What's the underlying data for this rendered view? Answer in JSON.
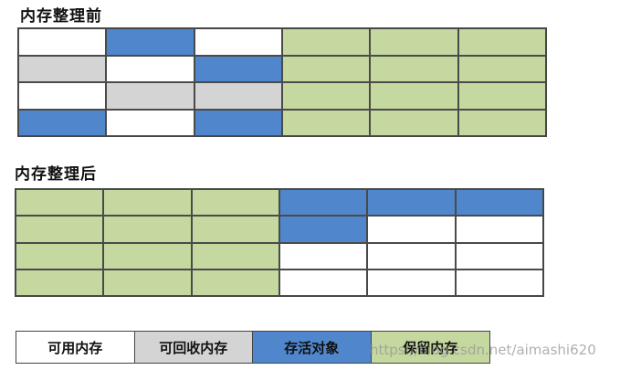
{
  "titles": {
    "before": "内存整理前",
    "after": "内存整理后"
  },
  "before_grid": [
    [
      "free",
      "live",
      "free",
      "reserved",
      "reserved",
      "reserved"
    ],
    [
      "garbage",
      "free",
      "live",
      "reserved",
      "reserved",
      "reserved"
    ],
    [
      "free",
      "garbage",
      "garbage",
      "reserved",
      "reserved",
      "reserved"
    ],
    [
      "live",
      "free",
      "live",
      "reserved",
      "reserved",
      "reserved"
    ]
  ],
  "after_grid": [
    [
      "reserved",
      "reserved",
      "reserved",
      "live",
      "live",
      "live"
    ],
    [
      "reserved",
      "reserved",
      "reserved",
      "live",
      "free",
      "free"
    ],
    [
      "reserved",
      "reserved",
      "reserved",
      "free",
      "free",
      "free"
    ],
    [
      "reserved",
      "reserved",
      "reserved",
      "free",
      "free",
      "free"
    ]
  ],
  "legend": [
    {
      "key": "free",
      "label": "可用内存",
      "color": "#ffffff"
    },
    {
      "key": "garbage",
      "label": "可回收内存",
      "color": "#d4d4d4"
    },
    {
      "key": "live",
      "label": "存活对象",
      "color": "#4f86cc"
    },
    {
      "key": "reserved",
      "label": "保留内存",
      "color": "#c5d8a0"
    }
  ],
  "watermark": "https://blog.csdn.net/aimashi620"
}
